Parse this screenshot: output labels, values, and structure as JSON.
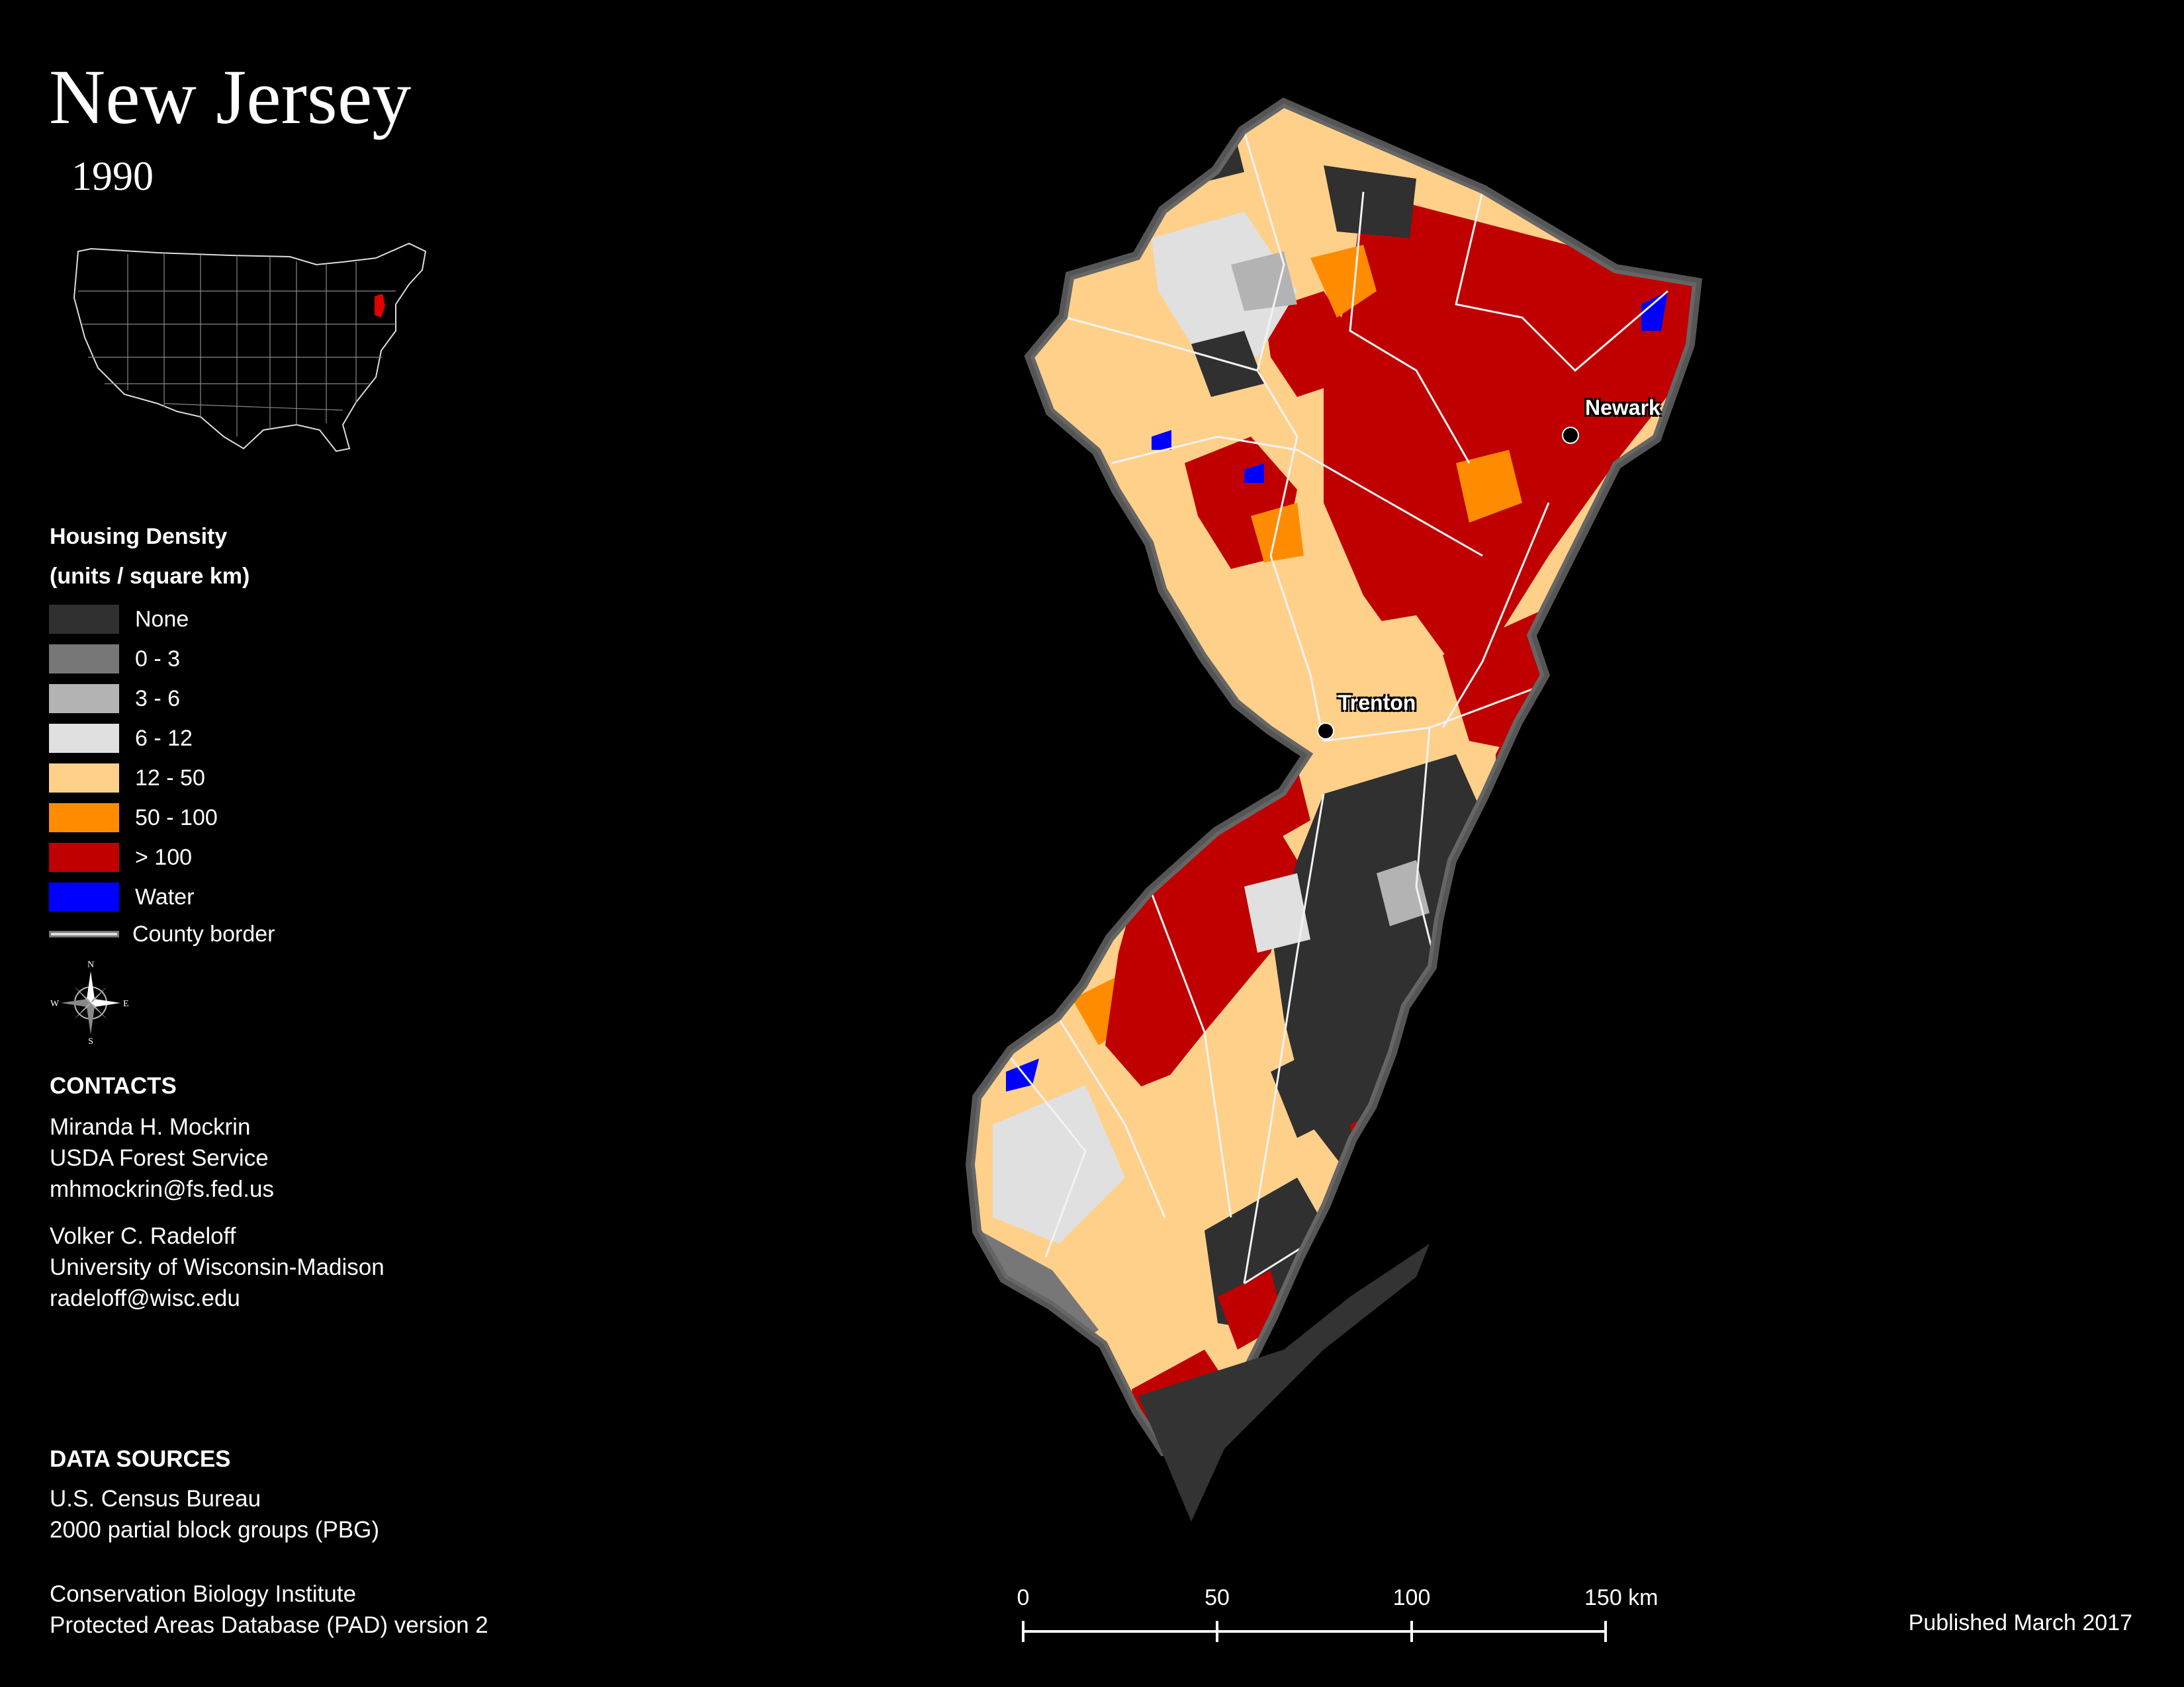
{
  "title": "New Jersey",
  "year": "1990",
  "legend": {
    "title_line1": "Housing Density",
    "title_line2": "(units / square km)",
    "items": [
      {
        "label": "None",
        "color": "#303030"
      },
      {
        "label": "0 - 3",
        "color": "#777777"
      },
      {
        "label": "3 - 6",
        "color": "#b3b3b3"
      },
      {
        "label": "6 - 12",
        "color": "#e0e0e0"
      },
      {
        "label": "12 - 50",
        "color": "#ffd08a"
      },
      {
        "label": "50 - 100",
        "color": "#ff8c00"
      },
      {
        "label": "> 100",
        "color": "#c00000"
      },
      {
        "label": "Water",
        "color": "#0000ff"
      }
    ],
    "county_border_label": "County border"
  },
  "compass": {
    "n": "N",
    "s": "S",
    "e": "E",
    "w": "W"
  },
  "contacts": {
    "heading": "CONTACTS",
    "person1": [
      "Miranda H. Mockrin",
      "USDA Forest Service",
      "mhmockrin@fs.fed.us"
    ],
    "person2": [
      "Volker C. Radeloff",
      "University of Wisconsin-Madison",
      "radeloff@wisc.edu"
    ]
  },
  "data_sources": {
    "heading": "DATA SOURCES",
    "source1": [
      "U.S. Census Bureau",
      "2000 partial block groups (PBG)"
    ],
    "source2": [
      "Conservation Biology Institute",
      "Protected Areas Database (PAD) version 2"
    ]
  },
  "cities": {
    "newark": "Newark",
    "trenton": "Trenton"
  },
  "scale": {
    "ticks": [
      "0",
      "50",
      "100",
      "150 km"
    ]
  },
  "published": "Published March 2017"
}
